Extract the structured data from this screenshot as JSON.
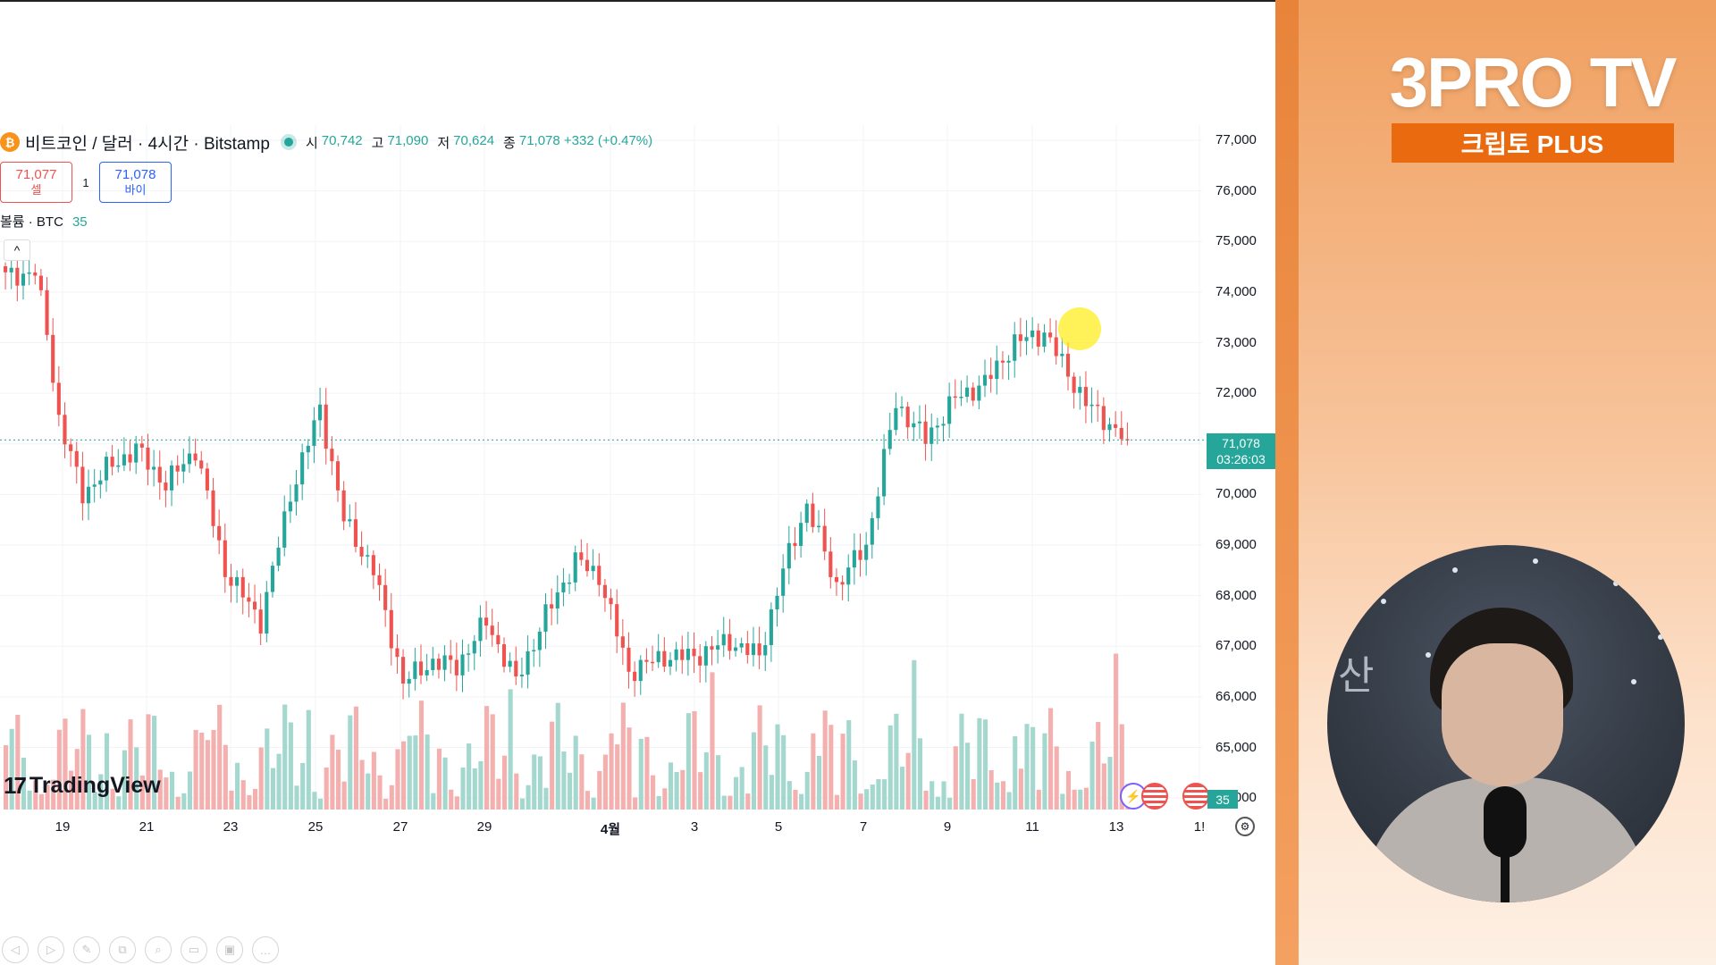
{
  "chart": {
    "symbol_icon": "bitcoin-icon",
    "symbol_icon_glyph": "₿",
    "symbol": "비트코인 / 달러 · 4시간 · Bitstamp",
    "ohlc": [
      {
        "k": "시",
        "v": "70,742"
      },
      {
        "k": "고",
        "v": "71,090"
      },
      {
        "k": "저",
        "v": "70,624"
      },
      {
        "k": "종",
        "v": "71,078 +332 (+0.47%)"
      }
    ],
    "sell_price": "71,077",
    "sell_label": "셀",
    "spread": "1",
    "buy_price": "71,078",
    "buy_label": "바이",
    "volume_label": "볼륨 · BTC",
    "volume_value": "35",
    "collapse_glyph": "^",
    "price_tag_price": "71,078",
    "price_tag_time": "03:26:03",
    "volume_tag": "35",
    "logo_mark": "17",
    "logo_text": "TradingView",
    "settings_glyph": "⚙",
    "event_icons": [
      "lightning-icon",
      "us-flag-icon",
      "us-flag-icon"
    ],
    "toolbar_icons": [
      "◁",
      "▷",
      "✎",
      "⧉",
      "⌕",
      "▭",
      "▣",
      "…"
    ],
    "colors": {
      "up": "#26a69a",
      "down": "#ef5350",
      "volume_up": "#a4d8cf",
      "volume_down": "#f3b0ae"
    }
  },
  "chart_data": {
    "type": "candlestick",
    "title": "비트코인 / 달러 · 4시간 · Bitstamp",
    "y_ticks": [
      "77,000",
      "76,000",
      "75,000",
      "74,000",
      "73,000",
      "72,000",
      "71,000",
      "70,000",
      "69,000",
      "68,000",
      "67,000",
      "66,000",
      "65,000",
      "64,000"
    ],
    "ylim": [
      63950,
      77000
    ],
    "x_ticks": [
      "19",
      "21",
      "23",
      "25",
      "27",
      "29",
      "4월",
      "3",
      "5",
      "7",
      "9",
      "11",
      "13",
      "1!"
    ],
    "anchors": [
      [
        0,
        74300
      ],
      [
        5,
        74400
      ],
      [
        7,
        73200
      ],
      [
        9,
        71500
      ],
      [
        13,
        70000
      ],
      [
        17,
        70500
      ],
      [
        22,
        70900
      ],
      [
        27,
        70200
      ],
      [
        32,
        70900
      ],
      [
        37,
        68500
      ],
      [
        43,
        67500
      ],
      [
        48,
        70000
      ],
      [
        53,
        71700
      ],
      [
        57,
        69500
      ],
      [
        62,
        68500
      ],
      [
        67,
        66300
      ],
      [
        72,
        66700
      ],
      [
        76,
        66600
      ],
      [
        81,
        67500
      ],
      [
        86,
        66300
      ],
      [
        91,
        67600
      ],
      [
        96,
        68700
      ],
      [
        100,
        68400
      ],
      [
        105,
        66500
      ],
      [
        111,
        66800
      ],
      [
        116,
        66800
      ],
      [
        122,
        67100
      ],
      [
        127,
        66800
      ],
      [
        131,
        68500
      ],
      [
        135,
        69800
      ],
      [
        140,
        68200
      ],
      [
        145,
        69000
      ],
      [
        150,
        71800
      ],
      [
        155,
        71100
      ],
      [
        160,
        71900
      ],
      [
        165,
        72200
      ],
      [
        170,
        73000
      ],
      [
        175,
        73200
      ],
      [
        178,
        72600
      ],
      [
        182,
        71800
      ],
      [
        185,
        71500
      ],
      [
        189,
        71050
      ]
    ],
    "volume_ticks": "estimated relative bars"
  },
  "panel": {
    "logo": "3PRO TV",
    "banner": "크립토 PLUS",
    "wall_text": "산"
  }
}
